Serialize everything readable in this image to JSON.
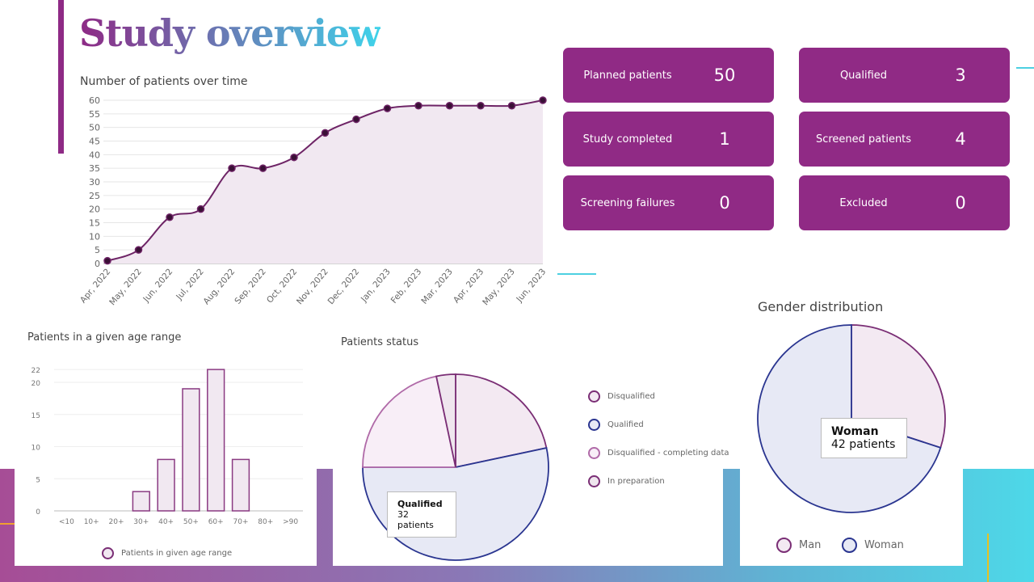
{
  "title": "Study overview",
  "colors": {
    "accent": "#902a85",
    "qualified": "#2a3590",
    "fill_purple": "#f1e8f1",
    "fill_blue": "#e7e9f5"
  },
  "cards": [
    {
      "label": "Planned patients",
      "value": "50"
    },
    {
      "label": "Qualified",
      "value": "3"
    },
    {
      "label": "Study completed",
      "value": "1"
    },
    {
      "label": "Screened patients",
      "value": "4"
    },
    {
      "label": "Screening failures",
      "value": "0"
    },
    {
      "label": "Excluded",
      "value": "0"
    }
  ],
  "chart_data": [
    {
      "type": "area",
      "title": "Number of patients over time",
      "categories": [
        "Apr, 2022",
        "May, 2022",
        "Jun, 2022",
        "Jul, 2022",
        "Aug, 2022",
        "Sep, 2022",
        "Oct, 2022",
        "Nov, 2022",
        "Dec, 2022",
        "Jan, 2023",
        "Feb, 2023",
        "Mar, 2023",
        "Apr, 2023",
        "May, 2023",
        "Jun, 2023"
      ],
      "values": [
        1,
        5,
        17,
        20,
        35,
        35,
        39,
        48,
        53,
        57,
        58,
        58,
        58,
        58,
        60
      ],
      "ylim": [
        0,
        60
      ],
      "yticks": [
        0,
        5,
        10,
        15,
        20,
        25,
        30,
        35,
        40,
        45,
        50,
        55,
        60
      ],
      "grid": true
    },
    {
      "type": "bar",
      "title": "Patients in a given age range",
      "categories": [
        "<10",
        "10+",
        "20+",
        "30+",
        "40+",
        "50+",
        "60+",
        "70+",
        "80+",
        ">90"
      ],
      "values": [
        0,
        0,
        0,
        3,
        8,
        19,
        22,
        8,
        0,
        0
      ],
      "ylim": [
        0,
        22
      ],
      "yticks": [
        0,
        5,
        10,
        15,
        20,
        22
      ],
      "grid": true,
      "legend": "Patients in given age range",
      "legend_position": "bottom"
    },
    {
      "type": "pie",
      "title": "Patients status",
      "labels": [
        "Disqualified",
        "Qualified",
        "Disqualified - completing data",
        "In preparation"
      ],
      "values": [
        13,
        32,
        13,
        2
      ],
      "colors": [
        "#7a2e75",
        "#2a3590",
        "#b06aa8",
        "#7a2e75"
      ],
      "fills": [
        "#f3e9f2",
        "#e7e9f5",
        "#f8eef7",
        "#efe6ee"
      ],
      "legend_position": "right",
      "tooltip": {
        "label": "Qualified",
        "value": "32 patients"
      }
    },
    {
      "type": "pie",
      "title": "Gender distribution",
      "labels": [
        "Man",
        "Woman"
      ],
      "values": [
        18,
        42
      ],
      "colors": [
        "#7a2e75",
        "#2a3590"
      ],
      "fills": [
        "#f3e9f2",
        "#e7e9f5"
      ],
      "legend_position": "bottom",
      "tooltip": {
        "label": "Woman",
        "value": "42 patients"
      }
    }
  ]
}
